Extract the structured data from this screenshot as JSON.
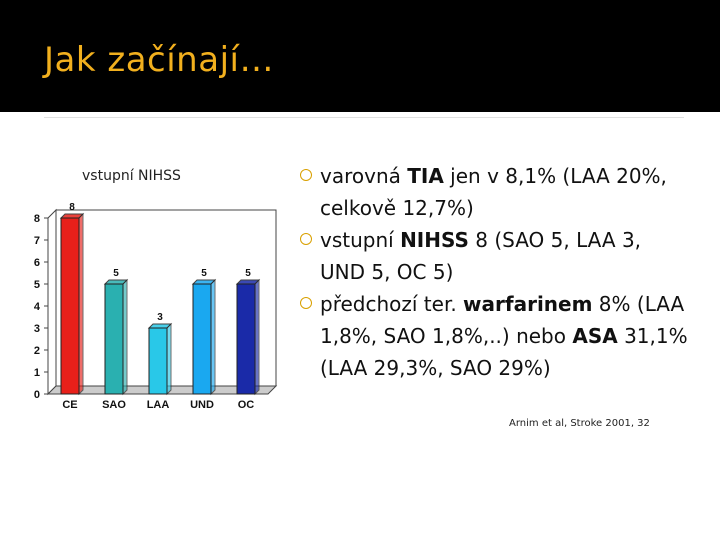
{
  "slide": {
    "title": "Jak začínají…",
    "chart_caption": "vstupní NIHSS",
    "citation": "Arnim et al, Stroke 2001, 32"
  },
  "bullets": [
    {
      "parts": [
        {
          "text": "varovná ",
          "bold": false
        },
        {
          "text": "TIA",
          "bold": true
        },
        {
          "text": " jen v 8,1% (LAA 20%, celkově 12,7%)",
          "bold": false
        }
      ]
    },
    {
      "parts": [
        {
          "text": "vstupní ",
          "bold": false
        },
        {
          "text": "NIHSS",
          "bold": true
        },
        {
          "text": " 8 (SAO 5, LAA 3, UND 5, OC 5)",
          "bold": false
        }
      ]
    },
    {
      "parts": [
        {
          "text": "předchozí ter. ",
          "bold": false
        },
        {
          "text": "warfarinem",
          "bold": true
        },
        {
          "text": " 8% (LAA 1,8%, SAO 1,8%,..) nebo ",
          "bold": false
        },
        {
          "text": "ASA",
          "bold": true
        },
        {
          "text": " 31,1% (LAA 29,3%, SAO 29%)",
          "bold": false
        }
      ]
    }
  ],
  "colors": {
    "title": "#f2b01e",
    "bullet": "#d9a000",
    "bars": [
      "#e8201a",
      "#2ab0b0",
      "#29c8e8",
      "#1aa8f0",
      "#1a2aa8"
    ]
  },
  "chart_data": {
    "type": "bar",
    "title": "vstupní NIHSS",
    "categories": [
      "CE",
      "SAO",
      "LAA",
      "UND",
      "OC"
    ],
    "values": [
      8,
      5,
      3,
      5,
      5
    ],
    "ylim": [
      0,
      8
    ],
    "yticks": [
      "0",
      "1",
      "2",
      "3",
      "4",
      "5",
      "6",
      "7",
      "8"
    ],
    "data_labels": [
      "8",
      "5",
      "3",
      "5",
      "5"
    ],
    "style": "3d"
  }
}
